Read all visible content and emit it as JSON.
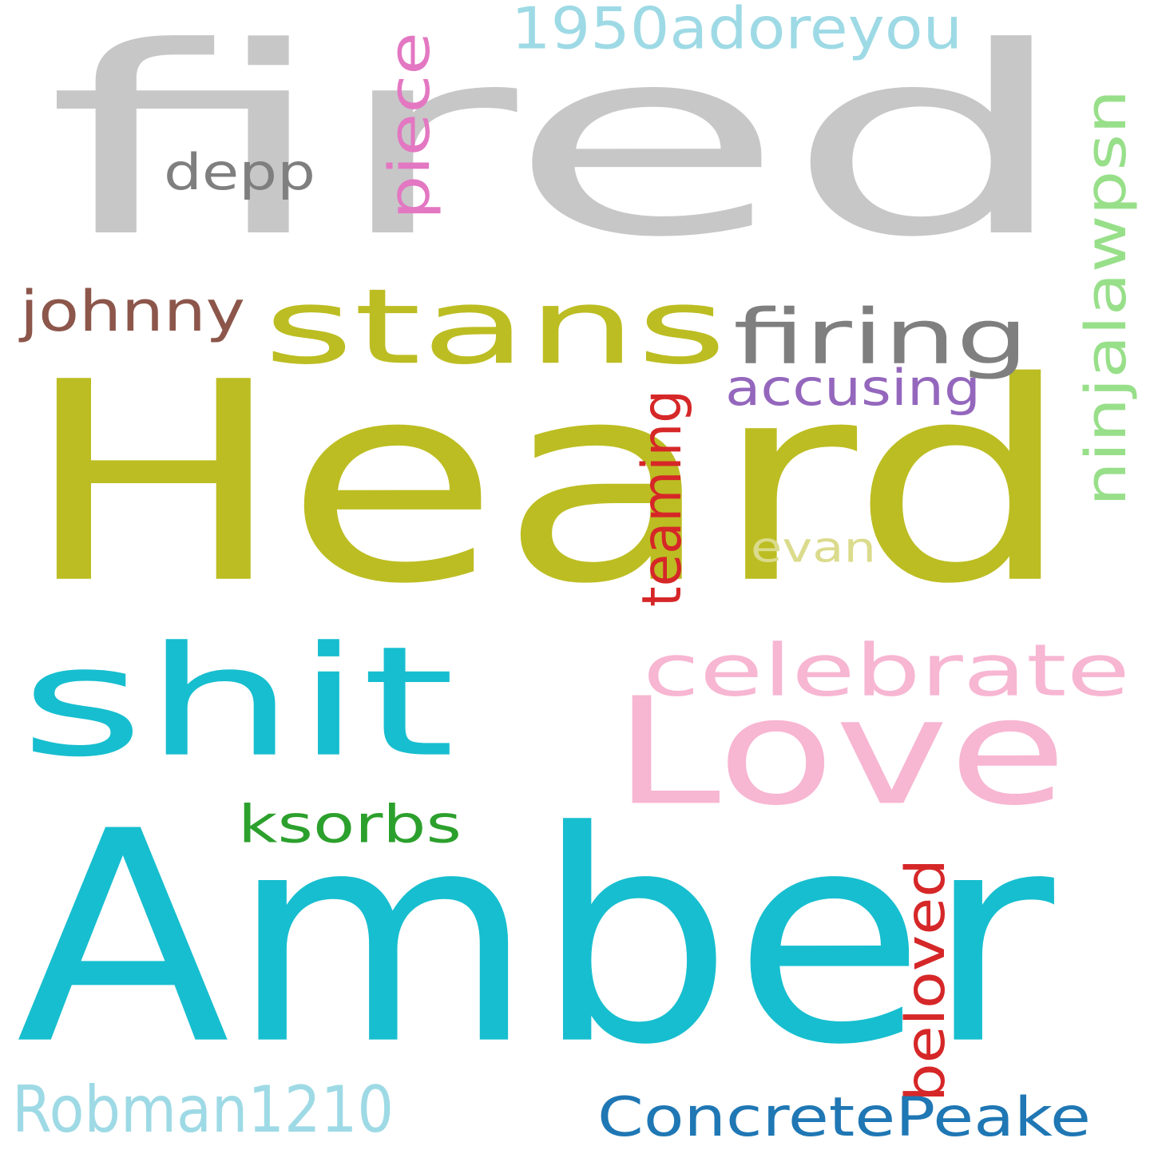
{
  "words": [
    {
      "text": "fired",
      "color": "#c7c7c7",
      "rotated": false
    },
    {
      "text": "Heard",
      "color": "#bcbd22",
      "rotated": false
    },
    {
      "text": "Amber",
      "color": "#17becf",
      "rotated": false
    },
    {
      "text": "stans",
      "color": "#bcbd22",
      "rotated": false
    },
    {
      "text": "shit",
      "color": "#17becf",
      "rotated": false
    },
    {
      "text": "Love",
      "color": "#f7b6d2",
      "rotated": false
    },
    {
      "text": "celebrate",
      "color": "#f7b6d2",
      "rotated": false
    },
    {
      "text": "firing",
      "color": "#7f7f7f",
      "rotated": false
    },
    {
      "text": "depp",
      "color": "#7f7f7f",
      "rotated": false
    },
    {
      "text": "johnny",
      "color": "#8c564b",
      "rotated": false
    },
    {
      "text": "1950adoreyou",
      "color": "#9edae5",
      "rotated": false
    },
    {
      "text": "piece",
      "color": "#e377c2",
      "rotated": true
    },
    {
      "text": "ninjalawpsn",
      "color": "#98df8a",
      "rotated": true
    },
    {
      "text": "accusing",
      "color": "#9467bd",
      "rotated": false
    },
    {
      "text": "teaming",
      "color": "#d62728",
      "rotated": true
    },
    {
      "text": "evan",
      "color": "#dbdb8d",
      "rotated": false
    },
    {
      "text": "ksorbs",
      "color": "#2ca02c",
      "rotated": false
    },
    {
      "text": "beloved",
      "color": "#d62728",
      "rotated": true
    },
    {
      "text": "Robman1210",
      "color": "#9edae5",
      "rotated": false
    },
    {
      "text": "ConcretePeake",
      "color": "#1f77b4",
      "rotated": false
    }
  ]
}
